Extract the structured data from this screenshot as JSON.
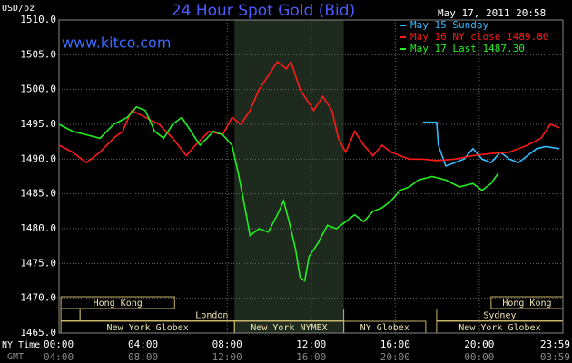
{
  "chart_data": {
    "type": "line",
    "title": "24 Hour Spot Gold (Bid)",
    "site": "www.kitco.com",
    "timestamp": "May 17, 2011 20:58",
    "y_unit": "USD/oz",
    "x_row_labels": [
      "NY Time",
      "GMT"
    ],
    "xlim": [
      0,
      23.98
    ],
    "xticks": [
      {
        "value": 0,
        "label": "00:00"
      },
      {
        "value": 4,
        "label": "04:00"
      },
      {
        "value": 8,
        "label": "08:00"
      },
      {
        "value": 12,
        "label": "12:00"
      },
      {
        "value": 16,
        "label": "16:00"
      },
      {
        "value": 20,
        "label": "20:00"
      },
      {
        "value": 23.98,
        "label": "23:59"
      }
    ],
    "gmt_tick_labels": [
      "04:00",
      "08:00",
      "12:00",
      "16:00",
      "20:00",
      "00:00",
      "03:59"
    ],
    "ylim": [
      1465,
      1510
    ],
    "yticks": [
      {
        "value": 1465,
        "label": "1465.0"
      },
      {
        "value": 1470,
        "label": "1470.0"
      },
      {
        "value": 1475,
        "label": "1475.0"
      },
      {
        "value": 1480,
        "label": "1480.0"
      },
      {
        "value": 1485,
        "label": "1485.0"
      },
      {
        "value": 1490,
        "label": "1490.0"
      },
      {
        "value": 1495,
        "label": "1495.0"
      },
      {
        "value": 1500,
        "label": "1500.0"
      },
      {
        "value": 1505,
        "label": "1505.0"
      },
      {
        "value": 1510,
        "label": "1510.0"
      }
    ],
    "grid": true,
    "highlight_range": [
      8.35,
      13.55
    ],
    "sessions": [
      {
        "label": "Hong Kong",
        "start": 0.09,
        "end": 5.5,
        "row": 0
      },
      {
        "label": "Hong Kong",
        "start": 20.56,
        "end": 23.98,
        "row": 0
      },
      {
        "label": null,
        "start": 0.09,
        "end": 1.0,
        "row": 1
      },
      {
        "label": "London",
        "start": 1.0,
        "end": 13.55,
        "row": 1
      },
      {
        "label": "Sydney",
        "start": 17.97,
        "end": 23.98,
        "row": 1
      },
      {
        "label": "New York Globex",
        "start": 0.09,
        "end": 8.35,
        "row": 2
      },
      {
        "label": "New York NYMEX",
        "start": 8.35,
        "end": 13.55,
        "row": 2
      },
      {
        "label": "NY Globex",
        "start": 13.55,
        "end": 17.45,
        "row": 2
      },
      {
        "label": "New York Globex",
        "start": 17.97,
        "end": 23.98,
        "row": 2
      }
    ],
    "series": [
      {
        "name": "May 15 Sunday",
        "color": "#33bbff",
        "x": [
          17.32,
          17.97,
          18.05,
          18.4,
          18.83,
          19.26,
          19.7,
          20.13,
          20.56,
          21.0,
          21.43,
          21.86,
          22.29,
          22.73,
          23.16,
          23.81
        ],
        "values": [
          1495.3,
          1495.3,
          1492,
          1489,
          1489.5,
          1490,
          1491.5,
          1490,
          1489.5,
          1491,
          1490,
          1489.5,
          1490.5,
          1491.5,
          1491.8,
          1491.5
        ]
      },
      {
        "name": "May 16 NY close 1489.80",
        "color": "#ff1a1a",
        "x": [
          0,
          0.65,
          1.3,
          1.95,
          2.6,
          3.03,
          3.46,
          4.11,
          4.76,
          5.41,
          6.06,
          6.49,
          7.14,
          7.79,
          8.23,
          8.66,
          9.09,
          9.52,
          9.96,
          10.39,
          10.82,
          11.04,
          11.47,
          12.12,
          12.55,
          12.99,
          13.29,
          13.64,
          14.07,
          14.5,
          14.94,
          15.37,
          15.8,
          16.23,
          16.67,
          17.32,
          17.97,
          18.83,
          19.7,
          20.56,
          21.43,
          22.29,
          22.94,
          23.38,
          23.81
        ],
        "values": [
          1492,
          1491,
          1489.5,
          1491,
          1493,
          1494,
          1497,
          1496,
          1495,
          1493,
          1490.5,
          1492,
          1494,
          1493.5,
          1496,
          1495,
          1497,
          1500,
          1502,
          1504,
          1503,
          1504,
          1500,
          1497,
          1499,
          1497,
          1493,
          1491,
          1494,
          1492,
          1490.5,
          1492,
          1491,
          1490.5,
          1490,
          1490,
          1489.8,
          1490,
          1490.5,
          1490.8,
          1491,
          1492,
          1493,
          1495,
          1494.5
        ]
      },
      {
        "name": "May 17 Last 1487.30",
        "color": "#22ee22",
        "x": [
          0,
          0.65,
          1.3,
          1.95,
          2.6,
          3.25,
          3.68,
          4.11,
          4.55,
          4.98,
          5.41,
          5.84,
          6.28,
          6.71,
          7.36,
          7.79,
          8.23,
          8.53,
          8.79,
          9.09,
          9.52,
          9.96,
          10.39,
          10.69,
          10.95,
          11.26,
          11.47,
          11.69,
          11.9,
          12.34,
          12.77,
          13.2,
          13.64,
          14.07,
          14.5,
          14.94,
          15.37,
          15.8,
          16.23,
          16.67,
          17.1,
          17.75,
          18.4,
          19.05,
          19.7,
          20.13,
          20.56,
          20.91
        ],
        "values": [
          1495,
          1494,
          1493.5,
          1493,
          1495,
          1496,
          1497.5,
          1497,
          1494,
          1493,
          1495,
          1496,
          1494,
          1492,
          1494,
          1493.5,
          1492,
          1488,
          1484,
          1479,
          1480,
          1479.5,
          1482,
          1484,
          1481,
          1477,
          1473,
          1472.5,
          1476,
          1478,
          1480.5,
          1480,
          1481,
          1482,
          1481,
          1482.5,
          1483,
          1484,
          1485.5,
          1486,
          1487,
          1487.5,
          1487,
          1486,
          1486.5,
          1485.5,
          1486.5,
          1488
        ]
      }
    ]
  }
}
